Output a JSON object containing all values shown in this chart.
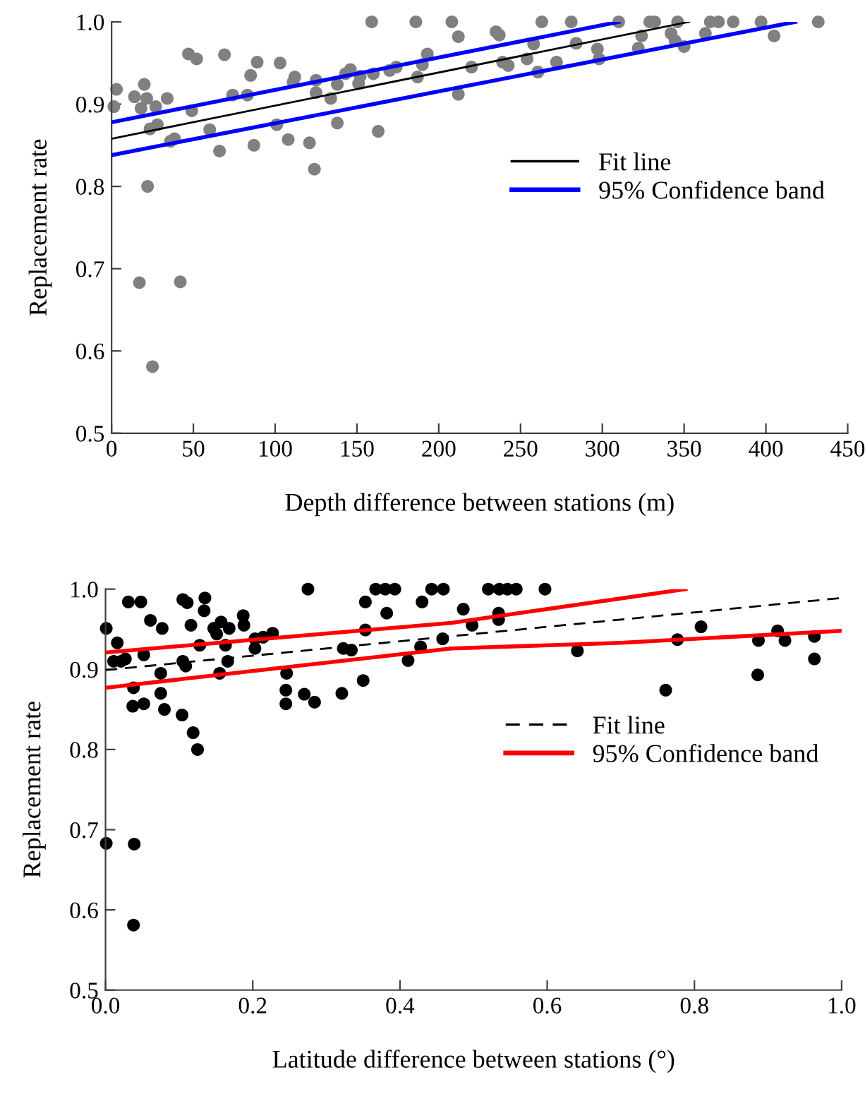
{
  "chart_data": [
    {
      "type": "scatter",
      "xlabel": "Depth difference between stations (m)",
      "ylabel": "Replacement rate",
      "xlim": [
        0,
        450
      ],
      "ylim": [
        0.5,
        1.0
      ],
      "xticks": [
        0,
        50,
        100,
        150,
        200,
        250,
        300,
        350,
        400,
        450
      ],
      "yticks": [
        {
          "value": 0.5,
          "label": "0.5"
        },
        {
          "value": 0.6,
          "label": "0.6"
        },
        {
          "value": 0.7,
          "label": "0.7"
        },
        {
          "value": 0.8,
          "label": "0.8"
        },
        {
          "value": 0.9,
          "label": "0.9"
        },
        {
          "value": 1.0,
          "label": "1.0"
        }
      ],
      "grid": false,
      "legend": "right",
      "series": [
        {
          "type": "scatter",
          "color": "#808080",
          "marker": "circle",
          "x": [
            3,
            1.4,
            14,
            20,
            21.5,
            18,
            27,
            23.5,
            28,
            22,
            17,
            42,
            25,
            34,
            36,
            38.5,
            47,
            52,
            49,
            60,
            66,
            69,
            74,
            83,
            85,
            89,
            87,
            101,
            103,
            108,
            111,
            112,
            121,
            124,
            125,
            125,
            134,
            138,
            138,
            143,
            146,
            151,
            152,
            159,
            160,
            163,
            170,
            174,
            186,
            187,
            190,
            193,
            208,
            212,
            212,
            220,
            235,
            237,
            239,
            242.5,
            254,
            258,
            260.6,
            263,
            272,
            281,
            284,
            297,
            298,
            310,
            322,
            324,
            329,
            332,
            342,
            346,
            344.5,
            350,
            363,
            366,
            371,
            380,
            397,
            405,
            432
          ],
          "values": [
            0.918,
            0.897,
            0.909,
            0.924,
            0.907,
            0.895,
            0.897,
            0.87,
            0.875,
            0.8,
            0.683,
            0.684,
            0.581,
            0.907,
            0.855,
            0.858,
            0.961,
            0.955,
            0.892,
            0.869,
            0.843,
            0.96,
            0.911,
            0.911,
            0.935,
            0.951,
            0.85,
            0.875,
            0.95,
            0.857,
            0.927,
            0.933,
            0.853,
            0.821,
            0.929,
            0.914,
            0.907,
            0.877,
            0.924,
            0.937,
            0.942,
            0.925,
            0.934,
            1.0,
            0.937,
            0.867,
            0.941,
            0.945,
            1.0,
            0.933,
            0.948,
            0.961,
            1.0,
            0.982,
            0.912,
            0.945,
            0.988,
            0.984,
            0.951,
            0.947,
            0.955,
            0.973,
            0.939,
            1.0,
            0.951,
            1.0,
            0.974,
            0.967,
            0.955,
            1.0,
            0.968,
            0.983,
            1.0,
            1.0,
            0.986,
            1.0,
            0.977,
            0.97,
            0.986,
            1.0,
            1.0,
            1.0,
            1.0,
            0.983,
            1.0
          ]
        },
        {
          "type": "line",
          "name": "Fit line",
          "color": "#000000",
          "line_style": "solid",
          "x": [
            0,
            353
          ],
          "values": [
            0.858,
            1.0
          ]
        },
        {
          "type": "line",
          "name": "95% Confidence band",
          "color": "#0000ff",
          "line_style": "solid",
          "x": [
            0,
            310
          ],
          "values": [
            0.878,
            1.0
          ]
        },
        {
          "type": "line",
          "color": "#0000ff",
          "line_style": "solid",
          "x": [
            0,
            418
          ],
          "values": [
            0.838,
            1.0
          ]
        }
      ]
    },
    {
      "type": "scatter",
      "xlabel": "Latitude difference between stations (°)",
      "ylabel": "Replacement rate",
      "xlim": [
        0,
        1.0
      ],
      "ylim": [
        0.5,
        1.0
      ],
      "xticks": [
        {
          "value": 0,
          "label": "0.0"
        },
        {
          "value": 0.2,
          "label": "0.2"
        },
        {
          "value": 0.4,
          "label": "0.4"
        },
        {
          "value": 0.6,
          "label": "0.6"
        },
        {
          "value": 0.8,
          "label": "0.8"
        },
        {
          "value": 1.0,
          "label": "1.0"
        }
      ],
      "yticks": [
        {
          "value": 0.5,
          "label": "0.5"
        },
        {
          "value": 0.6,
          "label": "0.6"
        },
        {
          "value": 0.7,
          "label": "0.7"
        },
        {
          "value": 0.8,
          "label": "0.8"
        },
        {
          "value": 0.9,
          "label": "0.9"
        },
        {
          "value": 1.0,
          "label": "1.0"
        }
      ],
      "grid": false,
      "legend": "right",
      "series": [
        {
          "type": "scatter",
          "color": "#000000",
          "marker": "circle",
          "x": [
            0.001,
            0.001,
            0.016,
            0.011,
            0.021,
            0.027,
            0.031,
            0.048,
            0.038,
            0.037,
            0.052,
            0.052,
            0.039,
            0.038,
            0.061,
            0.077,
            0.075,
            0.075,
            0.08,
            0.104,
            0.105,
            0.111,
            0.105,
            0.109,
            0.116,
            0.119,
            0.125,
            0.128,
            0.135,
            0.134,
            0.147,
            0.157,
            0.151,
            0.155,
            0.163,
            0.166,
            0.168,
            0.187,
            0.188,
            0.203,
            0.203,
            0.214,
            0.227,
            0.246,
            0.245,
            0.245,
            0.27,
            0.284,
            0.275,
            0.321,
            0.323,
            0.334,
            0.35,
            0.353,
            0.353,
            0.367,
            0.38,
            0.393,
            0.382,
            0.411,
            0.428,
            0.43,
            0.443,
            0.458,
            0.459,
            0.486,
            0.498,
            0.52,
            0.535,
            0.546,
            0.558,
            0.534,
            0.534,
            0.597,
            0.641,
            0.761,
            0.777,
            0.809,
            0.886,
            0.887,
            0.913,
            0.923,
            0.963,
            0.963
          ],
          "values": [
            0.951,
            0.683,
            0.933,
            0.91,
            0.91,
            0.913,
            0.984,
            0.984,
            0.877,
            0.854,
            0.857,
            0.918,
            0.682,
            0.581,
            0.961,
            0.951,
            0.895,
            0.87,
            0.85,
            0.843,
            0.987,
            0.983,
            0.91,
            0.904,
            0.955,
            0.821,
            0.8,
            0.93,
            0.989,
            0.973,
            0.951,
            0.959,
            0.944,
            0.895,
            0.93,
            0.91,
            0.951,
            0.967,
            0.955,
            0.938,
            0.926,
            0.94,
            0.945,
            0.895,
            0.874,
            0.857,
            0.869,
            0.859,
            1.0,
            0.87,
            0.926,
            0.924,
            0.886,
            0.949,
            0.984,
            1.0,
            1.0,
            1.0,
            0.97,
            0.911,
            0.928,
            0.984,
            1.0,
            0.938,
            1.0,
            0.975,
            0.955,
            1.0,
            1.0,
            1.0,
            1.0,
            0.97,
            0.962,
            1.0,
            0.923,
            0.874,
            0.937,
            0.953,
            0.893,
            0.936,
            0.948,
            0.936,
            0.941,
            0.913
          ]
        },
        {
          "type": "line",
          "name": "Fit line",
          "color": "#000000",
          "line_style": "dashed",
          "x": [
            0,
            1.0
          ],
          "values": [
            0.899,
            0.989
          ]
        },
        {
          "type": "line",
          "name": "95% Confidence band",
          "color": "#ff0000",
          "line_style": "solid",
          "x": [
            0,
            0.47,
            0.788
          ],
          "values": [
            0.921,
            0.958,
            1.0
          ]
        },
        {
          "type": "line",
          "color": "#ff0000",
          "line_style": "solid",
          "x": [
            0,
            0.47,
            0.7,
            1.0
          ],
          "values": [
            0.877,
            0.926,
            0.933,
            0.948
          ]
        }
      ]
    }
  ]
}
